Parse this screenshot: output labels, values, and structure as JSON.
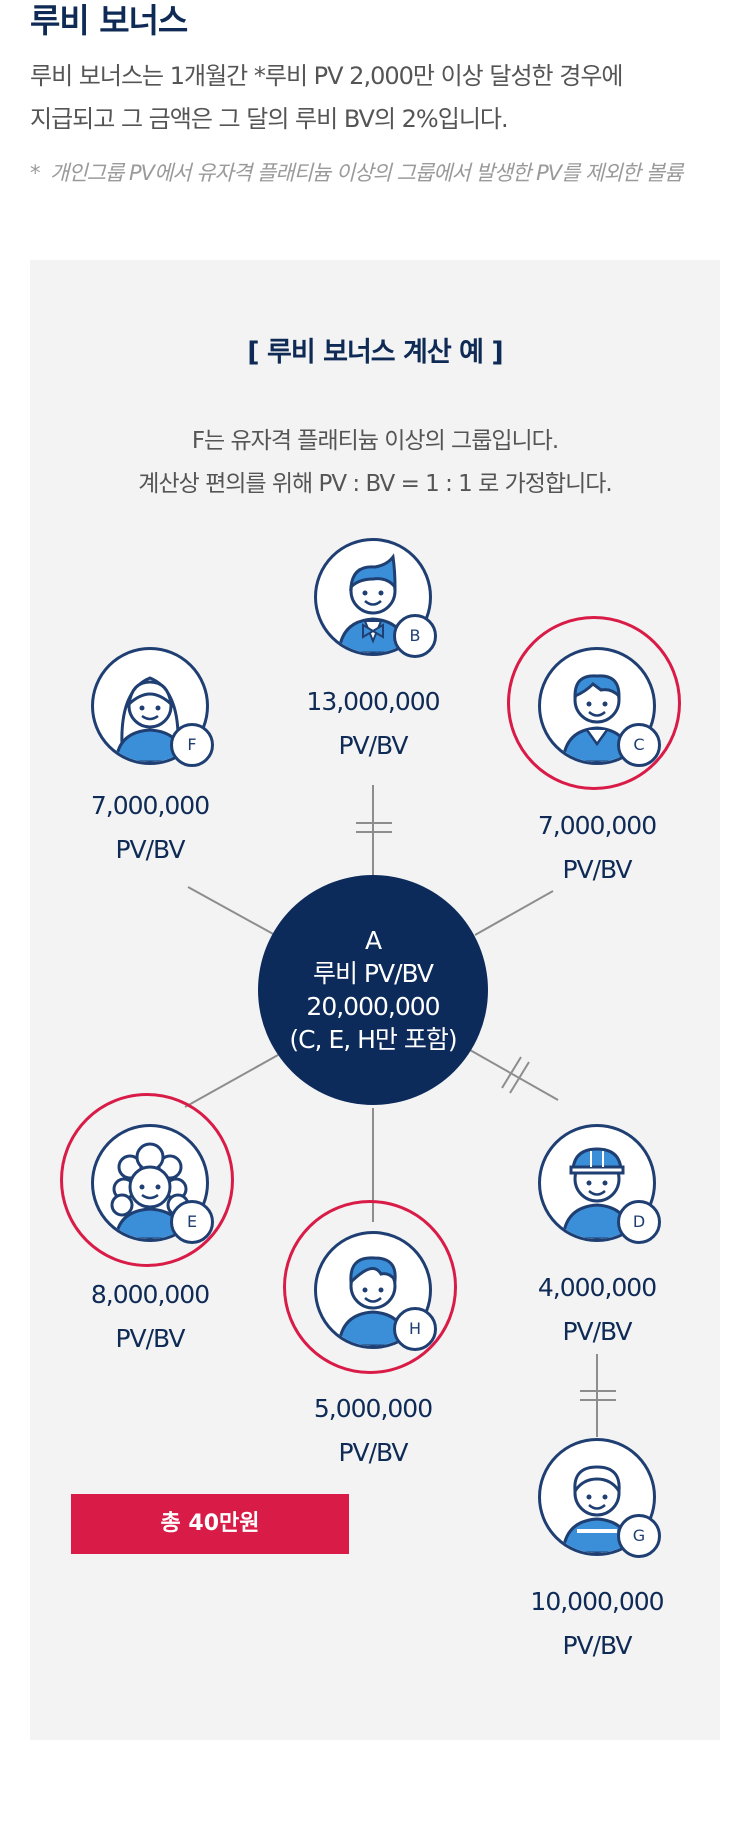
{
  "header": {
    "title": "루비 보너스",
    "description_line1": "루비 보너스는 1개월간 *루비 PV 2,000만 이상 달성한 경우에",
    "description_line2": "지급되고 그 금액은 그 달의 루비 BV의 2%입니다.",
    "note_mark": "*",
    "note_text": "개인그룹 PV에서 유자격 플래티늄 이상의 그룹에서 발생한 PV를 제외한 볼륨"
  },
  "example": {
    "title": "[ 루비 보너스 계산 예 ]",
    "intro_line1": "F는 유자격 플래티늄 이상의 그룹입니다.",
    "intro_line2": "계산상 편의를 위해 PV : BV = 1 : 1 로 가정합니다.",
    "center": {
      "label": "A",
      "line2": "루비 PV/BV",
      "line3": "20,000,000",
      "line4": "(C, E, H만 포함)"
    },
    "nodes": [
      {
        "letter": "B",
        "value": "13,000,000",
        "unit": "PV/BV",
        "highlighted": false,
        "icon": "man-bowtie-icon"
      },
      {
        "letter": "F",
        "value": "7,000,000",
        "unit": "PV/BV",
        "highlighted": false,
        "icon": "woman-icon"
      },
      {
        "letter": "C",
        "value": "7,000,000",
        "unit": "PV/BV",
        "highlighted": true,
        "icon": "man-icon"
      },
      {
        "letter": "E",
        "value": "8,000,000",
        "unit": "PV/BV",
        "highlighted": true,
        "icon": "curly-woman-icon"
      },
      {
        "letter": "H",
        "value": "5,000,000",
        "unit": "PV/BV",
        "highlighted": true,
        "icon": "boy-icon"
      },
      {
        "letter": "D",
        "value": "4,000,000",
        "unit": "PV/BV",
        "highlighted": false,
        "icon": "helmet-man-icon"
      },
      {
        "letter": "G",
        "value": "10,000,000",
        "unit": "PV/BV",
        "highlighted": false,
        "icon": "girl-icon"
      }
    ],
    "total_label": "총 40만원"
  },
  "colors": {
    "navy": "#0c2b5b",
    "accent_red": "#d91c47",
    "panel_bg": "#f3f3f4",
    "avatar_fill": "#3b8fd8"
  }
}
